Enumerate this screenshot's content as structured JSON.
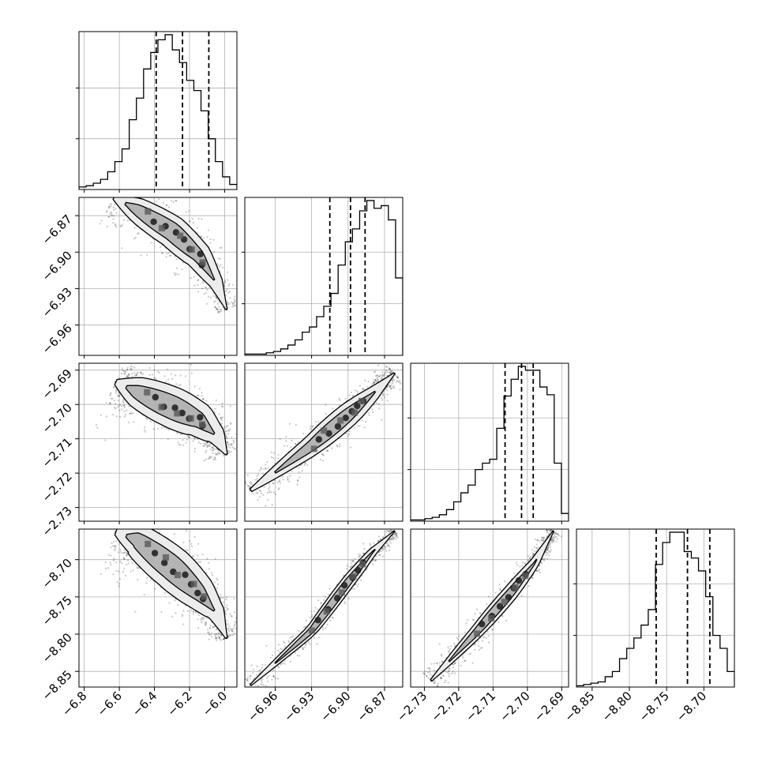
{
  "chart_data": {
    "type": "corner",
    "parameters": [
      {
        "range": [
          -6.83,
          -5.93
        ],
        "ticks": [
          -6.8,
          -6.6,
          -6.4,
          -6.2,
          -6.0
        ],
        "tick_labels": [
          "−6.8",
          "−6.6",
          "−6.4",
          "−6.2",
          "−6.0"
        ],
        "quantiles": [
          -6.39,
          -6.24,
          -6.09
        ]
      },
      {
        "range": [
          -6.985,
          -6.855
        ],
        "ticks": [
          -6.96,
          -6.93,
          -6.9,
          -6.87
        ],
        "tick_labels": [
          "−6.96",
          "−6.93",
          "−6.90",
          "−6.87"
        ],
        "quantiles": [
          -6.915,
          -6.898,
          -6.886
        ]
      },
      {
        "range": [
          -2.734,
          -2.688
        ],
        "ticks": [
          -2.73,
          -2.72,
          -2.71,
          -2.7,
          -2.69
        ],
        "tick_labels": [
          "−2.73",
          "−2.72",
          "−2.71",
          "−2.70",
          "−2.69"
        ],
        "quantiles": [
          -2.7065,
          -2.7017,
          -2.6983
        ]
      },
      {
        "range": [
          -8.871,
          -8.659
        ],
        "ticks": [
          -8.85,
          -8.8,
          -8.75,
          -8.7
        ],
        "tick_labels": [
          "−8.85",
          "−8.80",
          "−8.75",
          "−8.70"
        ],
        "quantiles": [
          -8.764,
          -8.722,
          -8.692
        ]
      }
    ],
    "histograms": [
      {
        "counts": [
          2,
          3,
          5,
          8,
          14,
          22,
          32,
          55,
          72,
          95,
          108,
          118,
          122,
          110,
          100,
          86,
          78,
          62,
          40,
          22,
          10,
          4
        ]
      },
      {
        "counts": [
          1,
          1,
          1,
          2,
          3,
          5,
          8,
          12,
          18,
          22,
          30,
          38,
          48,
          70,
          88,
          98,
          112,
          120,
          114,
          116,
          105,
          60
        ]
      },
      {
        "counts": [
          1,
          1,
          2,
          3,
          5,
          9,
          15,
          22,
          28,
          40,
          45,
          48,
          72,
          97,
          110,
          120,
          117,
          117,
          104,
          98,
          45,
          6
        ]
      },
      {
        "counts": [
          1,
          2,
          3,
          4,
          8,
          12,
          22,
          30,
          38,
          48,
          60,
          95,
          112,
          120,
          120,
          105,
          100,
          90,
          70,
          40,
          30,
          12
        ]
      }
    ],
    "pairs": [
      {
        "row": 1,
        "col": 0,
        "curve": [
          [
            -6.63,
            -6.855
          ],
          [
            -6.5,
            -6.865
          ],
          [
            -6.3,
            -6.883
          ],
          [
            -6.15,
            -6.903
          ],
          [
            -6.05,
            -6.925
          ],
          [
            -5.99,
            -6.947
          ]
        ],
        "width": [
          0.018,
          0.007
        ]
      },
      {
        "row": 2,
        "col": 0,
        "curve": [
          [
            -6.62,
            -2.6935
          ],
          [
            -6.5,
            -2.6963
          ],
          [
            -6.3,
            -2.7008
          ],
          [
            -6.15,
            -2.7045
          ],
          [
            -6.05,
            -2.709
          ],
          [
            -5.99,
            -2.7145
          ]
        ],
        "width": [
          0.008,
          0.0035
        ]
      },
      {
        "row": 3,
        "col": 0,
        "curve": [
          [
            -6.62,
            -8.663
          ],
          [
            -6.5,
            -8.673
          ],
          [
            -6.3,
            -8.711
          ],
          [
            -6.15,
            -8.744
          ],
          [
            -6.05,
            -8.771
          ],
          [
            -5.99,
            -8.805
          ]
        ],
        "width": [
          0.04,
          0.014
        ]
      },
      {
        "row": 2,
        "col": 1,
        "curve": [
          [
            -6.98,
            -2.725
          ],
          [
            -6.93,
            -2.712
          ],
          [
            -6.9,
            -2.703
          ],
          [
            -6.88,
            -2.697
          ],
          [
            -6.862,
            -2.691
          ]
        ],
        "width": [
          0.0045,
          0.0022
        ]
      },
      {
        "row": 3,
        "col": 1,
        "curve": [
          [
            -6.98,
            -8.868
          ],
          [
            -6.93,
            -8.795
          ],
          [
            -6.9,
            -8.73
          ],
          [
            -6.88,
            -8.69
          ],
          [
            -6.862,
            -8.662
          ]
        ],
        "width": [
          0.011,
          0.006
        ]
      },
      {
        "row": 3,
        "col": 2,
        "curve": [
          [
            -2.728,
            -8.862
          ],
          [
            -2.715,
            -8.798
          ],
          [
            -2.705,
            -8.745
          ],
          [
            -2.698,
            -8.705
          ],
          [
            -2.6925,
            -8.662
          ]
        ],
        "width": [
          0.013,
          0.007
        ]
      }
    ]
  }
}
